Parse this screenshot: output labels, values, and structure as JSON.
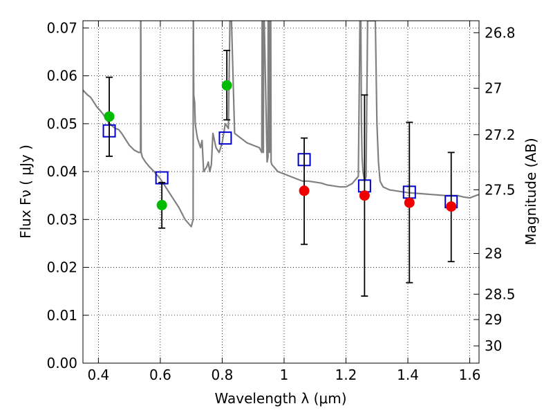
{
  "chart_data": {
    "type": "scatter",
    "xlabel": "Wavelength  λ (μm)",
    "ylabel": "Flux  Fν  ( μJy )",
    "y2label": "Magnitude (AB)",
    "xlim": [
      0.35,
      1.63
    ],
    "ylim": [
      0.0,
      0.0715
    ],
    "grid": true,
    "x_ticks": [
      0.4,
      0.6,
      0.8,
      1.0,
      1.2,
      1.4,
      1.6
    ],
    "x_tick_labels": [
      "0.4",
      "0.6",
      "0.8",
      "1",
      "1.2",
      "1.4",
      "1.6"
    ],
    "y_ticks": [
      0.0,
      0.01,
      0.02,
      0.03,
      0.04,
      0.05,
      0.06,
      0.07
    ],
    "y_tick_labels": [
      "0.00",
      "0.01",
      "0.02",
      "0.03",
      "0.04",
      "0.05",
      "0.06",
      "0.07"
    ],
    "mag_ticks": [
      {
        "flux": 0.069,
        "label": "26.8"
      },
      {
        "flux": 0.0574,
        "label": "27"
      },
      {
        "flux": 0.0477,
        "label": "27.2"
      },
      {
        "flux": 0.0362,
        "label": "27.5"
      },
      {
        "flux": 0.0229,
        "label": "28"
      },
      {
        "flux": 0.0144,
        "label": "28.5"
      },
      {
        "flux": 0.0091,
        "label": "29"
      },
      {
        "flux": 0.0036,
        "label": "30"
      }
    ],
    "series": [
      {
        "color": "#808080",
        "style": "line",
        "x": [
          0.35,
          0.365,
          0.375,
          0.385,
          0.395,
          0.405,
          0.415,
          0.425,
          0.435,
          0.445,
          0.455,
          0.465,
          0.475,
          0.485,
          0.5,
          0.515,
          0.53,
          0.536,
          0.5365,
          0.537,
          0.538,
          0.542,
          0.547,
          0.552,
          0.565,
          0.58,
          0.6,
          0.62,
          0.64,
          0.66,
          0.68,
          0.7,
          0.706,
          0.7065,
          0.707,
          0.708,
          0.711,
          0.713,
          0.715,
          0.72,
          0.73,
          0.735,
          0.74,
          0.75,
          0.755,
          0.76,
          0.765,
          0.77,
          0.78,
          0.79,
          0.8,
          0.81,
          0.82,
          0.825,
          0.83,
          0.84,
          0.86,
          0.88,
          0.9,
          0.92,
          0.928,
          0.929,
          0.931,
          0.933,
          0.934,
          0.936,
          0.945,
          0.948,
          0.9485,
          0.951,
          0.953,
          0.955,
          0.957,
          0.958,
          0.96,
          0.98,
          1.0,
          1.02,
          1.04,
          1.06,
          1.08,
          1.1,
          1.12,
          1.14,
          1.16,
          1.18,
          1.2,
          1.22,
          1.24,
          1.245,
          1.248,
          1.25,
          1.252,
          1.255,
          1.26,
          1.265,
          1.27,
          1.272,
          1.28,
          1.286,
          1.29,
          1.295,
          1.3,
          1.305,
          1.31,
          1.32,
          1.34,
          1.36,
          1.38,
          1.4,
          1.42,
          1.44,
          1.46,
          1.48,
          1.5,
          1.52,
          1.54,
          1.56,
          1.58,
          1.6,
          1.62,
          1.63
        ],
        "y": [
          0.057,
          0.056,
          0.0555,
          0.0545,
          0.0535,
          0.0528,
          0.052,
          0.051,
          0.05,
          0.0495,
          0.049,
          0.0488,
          0.048,
          0.047,
          0.0455,
          0.0445,
          0.044,
          0.044,
          0.0715,
          0.0715,
          0.044,
          0.043,
          0.0425,
          0.042,
          0.041,
          0.04,
          0.0385,
          0.0365,
          0.0345,
          0.0325,
          0.03,
          0.0285,
          0.03,
          0.0715,
          0.0715,
          0.056,
          0.0545,
          0.05,
          0.049,
          0.047,
          0.045,
          0.0465,
          0.04,
          0.041,
          0.042,
          0.04,
          0.0415,
          0.048,
          0.045,
          0.044,
          0.046,
          0.05,
          0.049,
          0.0715,
          0.0715,
          0.048,
          0.047,
          0.046,
          0.0455,
          0.045,
          0.044,
          0.0715,
          0.0715,
          0.044,
          0.0715,
          0.0715,
          0.042,
          0.043,
          0.0715,
          0.0715,
          0.044,
          0.0715,
          0.0715,
          0.042,
          0.0415,
          0.04,
          0.0395,
          0.039,
          0.0385,
          0.038,
          0.038,
          0.0378,
          0.0376,
          0.0372,
          0.037,
          0.0368,
          0.0368,
          0.0375,
          0.039,
          0.0715,
          0.0715,
          0.05,
          0.043,
          0.04,
          0.038,
          0.039,
          0.0715,
          0.0715,
          0.0715,
          0.0715,
          0.0715,
          0.0715,
          0.05,
          0.042,
          0.038,
          0.0368,
          0.0362,
          0.036,
          0.0358,
          0.0356,
          0.0355,
          0.0354,
          0.0353,
          0.0352,
          0.0351,
          0.035,
          0.035,
          0.035,
          0.0347,
          0.0345,
          0.035,
          0.0352
        ]
      },
      {
        "color": "#0000cc",
        "style": "open-square",
        "x": [
          0.435,
          0.605,
          0.81,
          1.065,
          1.26,
          1.405,
          1.54
        ],
        "y": [
          0.0485,
          0.0387,
          0.047,
          0.0425,
          0.037,
          0.0357,
          0.0337
        ]
      },
      {
        "color": "#00bb00",
        "style": "filled-circle",
        "x": [
          0.435,
          0.605,
          0.815
        ],
        "y": [
          0.0515,
          0.033,
          0.058
        ],
        "yerr_low": [
          0.0083,
          0.0048,
          0.0072
        ],
        "yerr_high": [
          0.0082,
          0.0047,
          0.0073
        ]
      },
      {
        "color": "#ee0000",
        "style": "filled-circle",
        "x": [
          1.065,
          1.26,
          1.405,
          1.54
        ],
        "y": [
          0.036,
          0.035,
          0.0335,
          0.0327
        ],
        "yerr_low": [
          0.0112,
          0.021,
          0.0167,
          0.0115
        ],
        "yerr_high": [
          0.011,
          0.021,
          0.0168,
          0.0113
        ]
      }
    ]
  }
}
